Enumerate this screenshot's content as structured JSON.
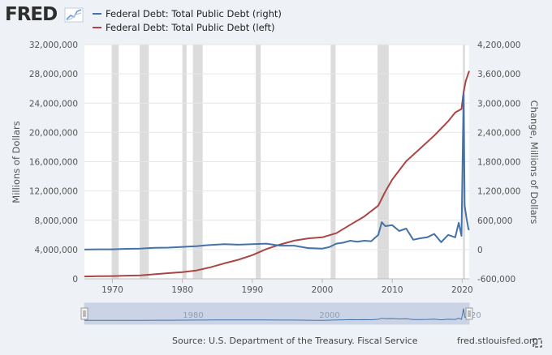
{
  "logo": {
    "text": "FRED"
  },
  "legend": [
    {
      "label": "Federal Debt: Total Public Debt (right)",
      "color": "#4572a7"
    },
    {
      "label": "Federal Debt: Total Public Debt (left)",
      "color": "#aa4643"
    }
  ],
  "footer": {
    "source": "Source: U.S. Department of the Treasury. Fiscal Service",
    "site": "fred.stlouisfed.org"
  },
  "navigator": {
    "labels": [
      "1980",
      "2000",
      "20"
    ]
  },
  "colors": {
    "recession": "#dcdcdc",
    "navigator_fill": "#c7d2e5",
    "navigator_line": "#4572a7"
  },
  "icons": [
    "fullscreen-icon",
    "logo-sparkline-icon",
    "navigator-left-handle-icon",
    "navigator-right-handle-icon"
  ],
  "chart_data": {
    "type": "line",
    "x_range": [
      1966.0,
      2021.0
    ],
    "xticks": [
      "1970",
      "1980",
      "1990",
      "2000",
      "2010",
      "2020"
    ],
    "left_axis": {
      "label": "Millions of Dollars",
      "range": [
        0,
        32000000
      ],
      "ticks": [
        "0",
        "4,000,000",
        "8,000,000",
        "12,000,000",
        "16,000,000",
        "20,000,000",
        "24,000,000",
        "28,000,000",
        "32,000,000"
      ]
    },
    "right_axis": {
      "label": "Change, Millions of Dollars",
      "range": [
        -600000,
        4200000
      ],
      "ticks": [
        "-600,000",
        "0",
        "600,000",
        "1,200,000",
        "1,800,000",
        "2,400,000",
        "3,000,000",
        "3,600,000",
        "4,200,000"
      ]
    },
    "recessions": [
      [
        1969.9,
        1970.9
      ],
      [
        1973.9,
        1975.2
      ],
      [
        1980.0,
        1980.6
      ],
      [
        1981.5,
        1982.9
      ],
      [
        1990.5,
        1991.2
      ],
      [
        2001.2,
        2001.9
      ],
      [
        2007.9,
        2009.5
      ],
      [
        2020.1,
        2020.4
      ]
    ],
    "series": [
      {
        "name": "Federal Debt: Total Public Debt (left)",
        "axis": "left",
        "x": [
          1966,
          1968,
          1970,
          1972,
          1974,
          1976,
          1978,
          1980,
          1982,
          1984,
          1986,
          1988,
          1990,
          1992,
          1994,
          1996,
          1998,
          2000,
          2002,
          2004,
          2006,
          2008,
          2009,
          2010,
          2012,
          2014,
          2016,
          2018,
          2019,
          2019.9,
          2020.2,
          2020.5,
          2021.0
        ],
        "values": [
          320000,
          350000,
          380000,
          430000,
          480000,
          620000,
          780000,
          910000,
          1140000,
          1570000,
          2120000,
          2600000,
          3230000,
          4060000,
          4690000,
          5220000,
          5530000,
          5670000,
          6230000,
          7380000,
          8510000,
          10000000,
          11900000,
          13560000,
          16070000,
          17820000,
          19570000,
          21520000,
          22720000,
          23200000,
          25500000,
          27000000,
          28400000
        ]
      },
      {
        "name": "Federal Debt: Total Public Debt (right)",
        "axis": "right",
        "x": [
          1966,
          1968,
          1970,
          1972,
          1974,
          1976,
          1978,
          1980,
          1982,
          1984,
          1986,
          1988,
          1990,
          1992,
          1994,
          1996,
          1998,
          2000,
          2001,
          2002,
          2003,
          2004,
          2005,
          2006,
          2007,
          2008,
          2008.5,
          2009,
          2010,
          2011,
          2012,
          2013,
          2014,
          2015,
          2016,
          2017,
          2018,
          2019,
          2019.5,
          2019.9,
          2020.2,
          2020.35,
          2020.6,
          2020.9,
          2021.0
        ],
        "values": [
          0,
          5000,
          5000,
          15000,
          20000,
          35000,
          40000,
          55000,
          70000,
          95000,
          110000,
          100000,
          110000,
          120000,
          80000,
          80000,
          30000,
          20000,
          50000,
          120000,
          140000,
          180000,
          160000,
          180000,
          170000,
          300000,
          560000,
          480000,
          500000,
          380000,
          430000,
          200000,
          230000,
          250000,
          320000,
          150000,
          300000,
          250000,
          550000,
          280000,
          3200000,
          900000,
          650000,
          420000,
          400000
        ]
      }
    ]
  }
}
